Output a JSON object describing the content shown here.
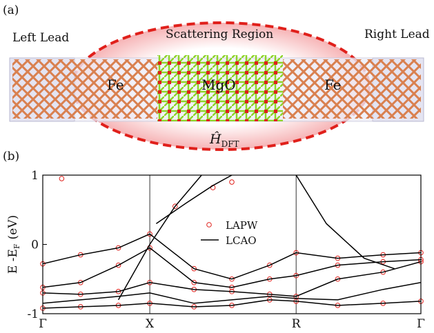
{
  "panel_a": {
    "label": "(a)",
    "left_lead": "Left Lead",
    "scattering_region": "Scattering Region",
    "right_lead": "Right Lead",
    "fe_left": "Fe",
    "mgo": "MgO",
    "fe_right": "Fe",
    "hamiltonian": "Ĥ",
    "hamiltonian_sub": "DFT"
  },
  "chart_data": {
    "type": "band-structure",
    "label": "(b)",
    "ylabel": {
      "main": "E -E",
      "sub": "F",
      "unit": "(eV)"
    },
    "xlim": [
      0,
      1
    ],
    "xticks": [
      {
        "value": 0,
        "label": "Γ"
      },
      {
        "value": 0.283,
        "label": "X"
      },
      {
        "value": 0.67,
        "label": "R"
      },
      {
        "value": 1,
        "label": "Γ"
      }
    ],
    "ylim": [
      -1,
      1
    ],
    "yticks": [
      -1,
      0,
      1
    ],
    "legend": "upper-center",
    "series": [
      {
        "name": "LAPW",
        "color": "#e0201b",
        "style": "marker",
        "x": [
          0,
          0.1,
          0.2,
          0.283,
          0.4,
          0.5,
          0.6,
          0.67,
          0.78,
          0.9,
          1,
          0,
          0.1,
          0.2,
          0.283,
          0.4,
          0.5,
          0.6,
          0.67,
          0.78,
          0.9,
          1,
          0,
          0.1,
          0.2,
          0.283,
          0.4,
          0.5,
          0.6,
          0.67,
          0.78,
          0.9,
          1,
          0,
          0.1,
          0.2,
          0.283,
          0.4,
          0.5,
          0.6,
          0.67,
          0.78,
          0.9,
          1,
          0.45,
          0.5,
          0.35,
          0.05
        ],
        "y": [
          -0.28,
          -0.15,
          -0.05,
          0.15,
          -0.35,
          -0.5,
          -0.3,
          -0.12,
          -0.2,
          -0.15,
          -0.12,
          -0.62,
          -0.55,
          -0.3,
          -0.05,
          -0.55,
          -0.62,
          -0.5,
          -0.45,
          -0.3,
          -0.25,
          -0.22,
          -0.7,
          -0.72,
          -0.68,
          -0.55,
          -0.65,
          -0.68,
          -0.72,
          -0.75,
          -0.5,
          -0.4,
          -0.25,
          -0.92,
          -0.9,
          -0.88,
          -0.85,
          -0.9,
          -0.88,
          -0.8,
          -0.82,
          -0.88,
          -0.85,
          -0.82,
          0.82,
          0.9,
          0.55,
          0.95
        ]
      },
      {
        "name": "LCAO",
        "color": "#000000",
        "style": "line",
        "bands": [
          {
            "x": [
              0,
              0.1,
              0.2,
              0.283,
              0.4,
              0.5,
              0.6,
              0.67,
              0.78,
              0.9,
              1
            ],
            "y": [
              -0.28,
              -0.15,
              -0.05,
              0.15,
              -0.35,
              -0.5,
              -0.3,
              -0.12,
              -0.2,
              -0.15,
              -0.12
            ]
          },
          {
            "x": [
              0,
              0.1,
              0.2,
              0.283,
              0.4,
              0.5,
              0.6,
              0.67,
              0.78,
              0.9,
              1
            ],
            "y": [
              -0.62,
              -0.55,
              -0.3,
              -0.05,
              -0.55,
              -0.62,
              -0.5,
              -0.45,
              -0.3,
              -0.25,
              -0.22
            ]
          },
          {
            "x": [
              0,
              0.1,
              0.2,
              0.283,
              0.4,
              0.5,
              0.6,
              0.67,
              0.78,
              0.9,
              1
            ],
            "y": [
              -0.7,
              -0.72,
              -0.68,
              -0.55,
              -0.65,
              -0.68,
              -0.72,
              -0.75,
              -0.5,
              -0.4,
              -0.25
            ]
          },
          {
            "x": [
              0,
              0.1,
              0.2,
              0.283,
              0.4,
              0.5,
              0.6,
              0.67,
              0.78,
              0.9,
              1
            ],
            "y": [
              -0.85,
              -0.8,
              -0.75,
              -0.7,
              -0.85,
              -0.8,
              -0.75,
              -0.78,
              -0.8,
              -0.65,
              -0.55
            ]
          },
          {
            "x": [
              0,
              0.1,
              0.2,
              0.283,
              0.4,
              0.5,
              0.6,
              0.67,
              0.78,
              0.9,
              1
            ],
            "y": [
              -0.92,
              -0.9,
              -0.88,
              -0.85,
              -0.9,
              -0.88,
              -0.8,
              -0.82,
              -0.88,
              -0.85,
              -0.82
            ]
          },
          {
            "x": [
              0.2,
              0.283,
              0.35,
              0.42
            ],
            "y": [
              -0.8,
              0,
              0.55,
              1
            ]
          },
          {
            "x": [
              0.67,
              0.75,
              0.85,
              0.93
            ],
            "y": [
              1,
              0.3,
              -0.2,
              -0.35
            ]
          },
          {
            "x": [
              0.3,
              0.38,
              0.45,
              0.5
            ],
            "y": [
              0.3,
              0.6,
              0.85,
              1
            ]
          }
        ]
      }
    ]
  }
}
